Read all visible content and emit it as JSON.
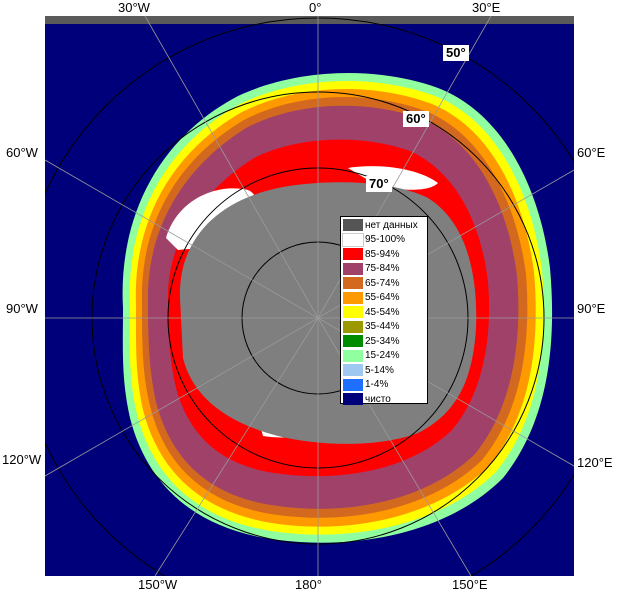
{
  "map": {
    "longitude_labels_top": [
      "30°W",
      "0°",
      "30°E"
    ],
    "longitude_labels_left": [
      "60°W",
      "90°W",
      "120°W"
    ],
    "longitude_labels_right": [
      "60°E",
      "90°E",
      "120°E"
    ],
    "longitude_labels_bottom": [
      "150°W",
      "180°",
      "150°E"
    ],
    "latitude_labels": [
      "50°",
      "60°",
      "70°"
    ],
    "colors": {
      "open_water": "#00007a",
      "land": "#7f7f7f",
      "frame": "#5a5a5a"
    }
  },
  "legend": {
    "items": [
      {
        "label": "нет данных",
        "color": "#555555"
      },
      {
        "label": "95-100%",
        "color": "#ffffff"
      },
      {
        "label": "85-94%",
        "color": "#ff0000"
      },
      {
        "label": "75-84%",
        "color": "#a0416a"
      },
      {
        "label": "65-74%",
        "color": "#d2691e"
      },
      {
        "label": "55-64%",
        "color": "#ff9900"
      },
      {
        "label": "45-54%",
        "color": "#ffff00"
      },
      {
        "label": "35-44%",
        "color": "#9a9a00"
      },
      {
        "label": "25-34%",
        "color": "#008c00"
      },
      {
        "label": "15-24%",
        "color": "#90ffa0"
      },
      {
        "label": "5-14%",
        "color": "#9ec8f0"
      },
      {
        "label": "1-4%",
        "color": "#1e6eff"
      },
      {
        "label": "чисто",
        "color": "#00007a"
      }
    ]
  }
}
